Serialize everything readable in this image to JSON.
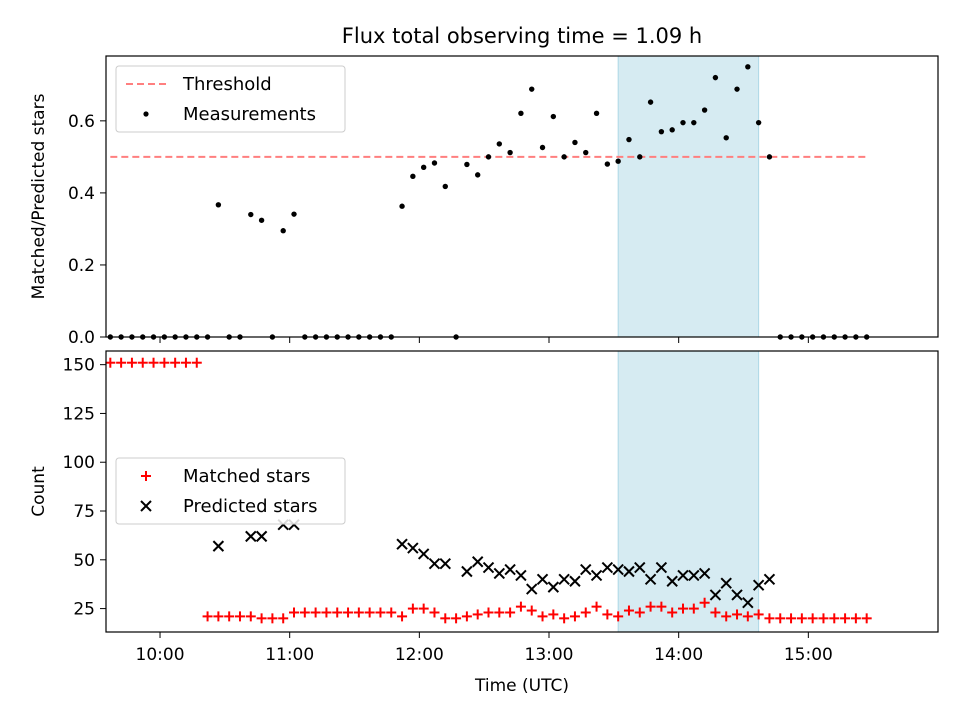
{
  "chart_data": [
    {
      "type": "scatter",
      "title": "Flux total observing time = 1.09 h",
      "xlabel": "",
      "ylabel": "Matched/Predicted stars",
      "ylim": [
        0,
        0.78
      ],
      "xlim": [
        "09:35",
        "16:00"
      ],
      "yticks": [
        "0.0",
        "0.2",
        "0.4",
        "0.6"
      ],
      "legend": {
        "position": "upper-left",
        "entries": [
          "Threshold",
          "Measurements"
        ]
      },
      "threshold": {
        "name": "Threshold",
        "y": 0.5,
        "x": [
          "09:37",
          "15:28"
        ],
        "color": "#ff7f7f"
      },
      "shaded_span": {
        "x": [
          "13:32",
          "14:37"
        ],
        "color": "#add8e6"
      },
      "series": [
        {
          "name": "Measurements",
          "color": "#000000",
          "points": [
            [
              "09:37",
              0
            ],
            [
              "09:42",
              0
            ],
            [
              "09:47",
              0
            ],
            [
              "09:52",
              0
            ],
            [
              "09:57",
              0
            ],
            [
              "10:02",
              0
            ],
            [
              "10:07",
              0
            ],
            [
              "10:12",
              0
            ],
            [
              "10:17",
              0
            ],
            [
              "10:22",
              0
            ],
            [
              "10:27",
              0.367
            ],
            [
              "10:32",
              0
            ],
            [
              "10:37",
              0
            ],
            [
              "10:42",
              0.34
            ],
            [
              "10:47",
              0.324
            ],
            [
              "10:52",
              0
            ],
            [
              "10:57",
              0.295
            ],
            [
              "11:02",
              0.341
            ],
            [
              "11:07",
              0
            ],
            [
              "11:12",
              0
            ],
            [
              "11:17",
              0
            ],
            [
              "11:22",
              0
            ],
            [
              "11:27",
              0
            ],
            [
              "11:32",
              0
            ],
            [
              "11:37",
              0
            ],
            [
              "11:42",
              0
            ],
            [
              "11:47",
              0
            ],
            [
              "11:52",
              0.363
            ],
            [
              "11:57",
              0.446
            ],
            [
              "12:02",
              0.471
            ],
            [
              "12:07",
              0.483
            ],
            [
              "12:12",
              0.418
            ],
            [
              "12:17",
              0
            ],
            [
              "12:22",
              0.479
            ],
            [
              "12:27",
              0.45
            ],
            [
              "12:32",
              0.5
            ],
            [
              "12:37",
              0.536
            ],
            [
              "12:42",
              0.512
            ],
            [
              "12:47",
              0.621
            ],
            [
              "12:52",
              0.688
            ],
            [
              "12:57",
              0.526
            ],
            [
              "13:02",
              0.612
            ],
            [
              "13:07",
              0.5
            ],
            [
              "13:12",
              0.54
            ],
            [
              "13:17",
              0.512
            ],
            [
              "13:22",
              0.621
            ],
            [
              "13:27",
              0.48
            ],
            [
              "13:32",
              0.488
            ],
            [
              "13:37",
              0.548
            ],
            [
              "13:42",
              0.5
            ],
            [
              "13:47",
              0.652
            ],
            [
              "13:52",
              0.57
            ],
            [
              "13:57",
              0.575
            ],
            [
              "14:02",
              0.595
            ],
            [
              "14:07",
              0.595
            ],
            [
              "14:12",
              0.63
            ],
            [
              "14:17",
              0.72
            ],
            [
              "14:22",
              0.553
            ],
            [
              "14:27",
              0.688
            ],
            [
              "14:32",
              0.75
            ],
            [
              "14:37",
              0.595
            ],
            [
              "14:42",
              0.5
            ],
            [
              "14:47",
              0
            ],
            [
              "14:52",
              0
            ],
            [
              "14:57",
              0
            ],
            [
              "15:02",
              0
            ],
            [
              "15:07",
              0
            ],
            [
              "15:12",
              0
            ],
            [
              "15:17",
              0
            ],
            [
              "15:22",
              0
            ],
            [
              "15:27",
              0
            ]
          ]
        }
      ]
    },
    {
      "type": "scatter",
      "title": "",
      "xlabel": "Time (UTC)",
      "ylabel": "Count",
      "ylim": [
        13,
        157
      ],
      "xlim": [
        "09:35",
        "16:00"
      ],
      "yticks": [
        "25",
        "50",
        "75",
        "100",
        "125",
        "150"
      ],
      "xticks": [
        "10:00",
        "11:00",
        "12:00",
        "13:00",
        "14:00",
        "15:00"
      ],
      "legend": {
        "position": "center-left",
        "entries": [
          "Matched stars",
          "Predicted stars"
        ]
      },
      "shaded_span": {
        "x": [
          "13:32",
          "14:37"
        ],
        "color": "#add8e6"
      },
      "series": [
        {
          "name": "Matched stars",
          "marker": "plus",
          "color": "#ff0000",
          "points": [
            [
              "09:37",
              151
            ],
            [
              "09:42",
              151
            ],
            [
              "09:47",
              151
            ],
            [
              "09:52",
              151
            ],
            [
              "09:57",
              151
            ],
            [
              "10:02",
              151
            ],
            [
              "10:07",
              151
            ],
            [
              "10:12",
              151
            ],
            [
              "10:17",
              151
            ],
            [
              "10:22",
              21
            ],
            [
              "10:27",
              21
            ],
            [
              "10:32",
              21
            ],
            [
              "10:37",
              21
            ],
            [
              "10:42",
              21
            ],
            [
              "10:47",
              20
            ],
            [
              "10:52",
              20
            ],
            [
              "10:57",
              20
            ],
            [
              "11:02",
              23
            ],
            [
              "11:07",
              23
            ],
            [
              "11:12",
              23
            ],
            [
              "11:17",
              23
            ],
            [
              "11:22",
              23
            ],
            [
              "11:27",
              23
            ],
            [
              "11:32",
              23
            ],
            [
              "11:37",
              23
            ],
            [
              "11:42",
              23
            ],
            [
              "11:47",
              23
            ],
            [
              "11:52",
              21
            ],
            [
              "11:57",
              25
            ],
            [
              "12:02",
              25
            ],
            [
              "12:07",
              23
            ],
            [
              "12:12",
              20
            ],
            [
              "12:17",
              20
            ],
            [
              "12:22",
              21
            ],
            [
              "12:27",
              22
            ],
            [
              "12:32",
              23
            ],
            [
              "12:37",
              23
            ],
            [
              "12:42",
              23
            ],
            [
              "12:47",
              26
            ],
            [
              "12:52",
              24
            ],
            [
              "12:57",
              21
            ],
            [
              "13:02",
              22
            ],
            [
              "13:07",
              20
            ],
            [
              "13:12",
              21
            ],
            [
              "13:17",
              23
            ],
            [
              "13:22",
              26
            ],
            [
              "13:27",
              22
            ],
            [
              "13:32",
              21
            ],
            [
              "13:37",
              24
            ],
            [
              "13:42",
              23
            ],
            [
              "13:47",
              26
            ],
            [
              "13:52",
              26
            ],
            [
              "13:57",
              23
            ],
            [
              "14:02",
              25
            ],
            [
              "14:07",
              25
            ],
            [
              "14:12",
              28
            ],
            [
              "14:17",
              23
            ],
            [
              "14:22",
              21
            ],
            [
              "14:27",
              22
            ],
            [
              "14:32",
              21
            ],
            [
              "14:37",
              22
            ],
            [
              "14:42",
              20
            ],
            [
              "14:47",
              20
            ],
            [
              "14:52",
              20
            ],
            [
              "14:57",
              20
            ],
            [
              "15:02",
              20
            ],
            [
              "15:07",
              20
            ],
            [
              "15:12",
              20
            ],
            [
              "15:17",
              20
            ],
            [
              "15:22",
              20
            ],
            [
              "15:27",
              20
            ]
          ]
        },
        {
          "name": "Predicted stars",
          "marker": "x",
          "color": "#000000",
          "points": [
            [
              "10:27",
              57
            ],
            [
              "10:42",
              62
            ],
            [
              "10:47",
              62
            ],
            [
              "10:57",
              68
            ],
            [
              "11:02",
              68
            ],
            [
              "11:52",
              58
            ],
            [
              "11:57",
              56
            ],
            [
              "12:02",
              53
            ],
            [
              "12:07",
              48
            ],
            [
              "12:12",
              48
            ],
            [
              "12:22",
              44
            ],
            [
              "12:27",
              49
            ],
            [
              "12:32",
              46
            ],
            [
              "12:37",
              43
            ],
            [
              "12:42",
              45
            ],
            [
              "12:47",
              42
            ],
            [
              "12:52",
              35
            ],
            [
              "12:57",
              40
            ],
            [
              "13:02",
              36
            ],
            [
              "13:07",
              40
            ],
            [
              "13:12",
              39
            ],
            [
              "13:17",
              45
            ],
            [
              "13:22",
              42
            ],
            [
              "13:27",
              46
            ],
            [
              "13:32",
              45
            ],
            [
              "13:37",
              44
            ],
            [
              "13:42",
              46
            ],
            [
              "13:47",
              40
            ],
            [
              "13:52",
              46
            ],
            [
              "13:57",
              39
            ],
            [
              "14:02",
              42
            ],
            [
              "14:07",
              42
            ],
            [
              "14:12",
              43
            ],
            [
              "14:17",
              32
            ],
            [
              "14:22",
              38
            ],
            [
              "14:27",
              32
            ],
            [
              "14:32",
              28
            ],
            [
              "14:37",
              37
            ],
            [
              "14:42",
              40
            ]
          ]
        }
      ]
    }
  ]
}
